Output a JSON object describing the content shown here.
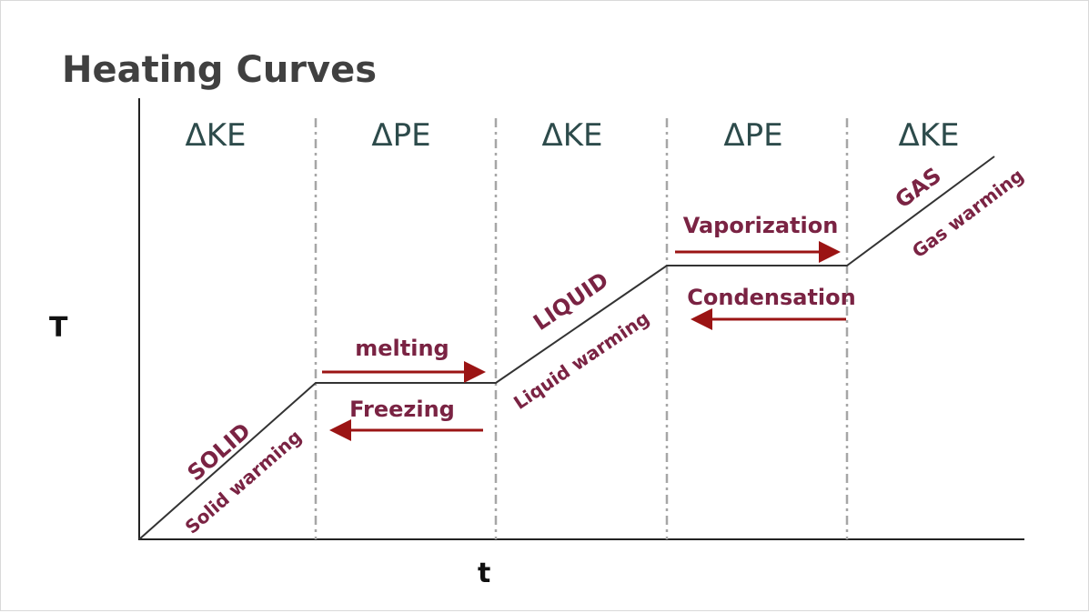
{
  "title": "Heating Curves",
  "axes": {
    "y_label": "T",
    "x_label": "t"
  },
  "regions": [
    "ΔKE",
    "ΔPE",
    "ΔKE",
    "ΔPE",
    "ΔKE"
  ],
  "segments": [
    {
      "phase": "SOLID",
      "label": "Solid warming"
    },
    {
      "phase": "LIQUID",
      "label": "Liquid warming"
    },
    {
      "phase": "GAS",
      "label": "Gas warming"
    }
  ],
  "transitions": [
    {
      "forward": "melting",
      "reverse": "Freezing"
    },
    {
      "forward": "Vaporization",
      "reverse": "Condensation"
    }
  ]
}
